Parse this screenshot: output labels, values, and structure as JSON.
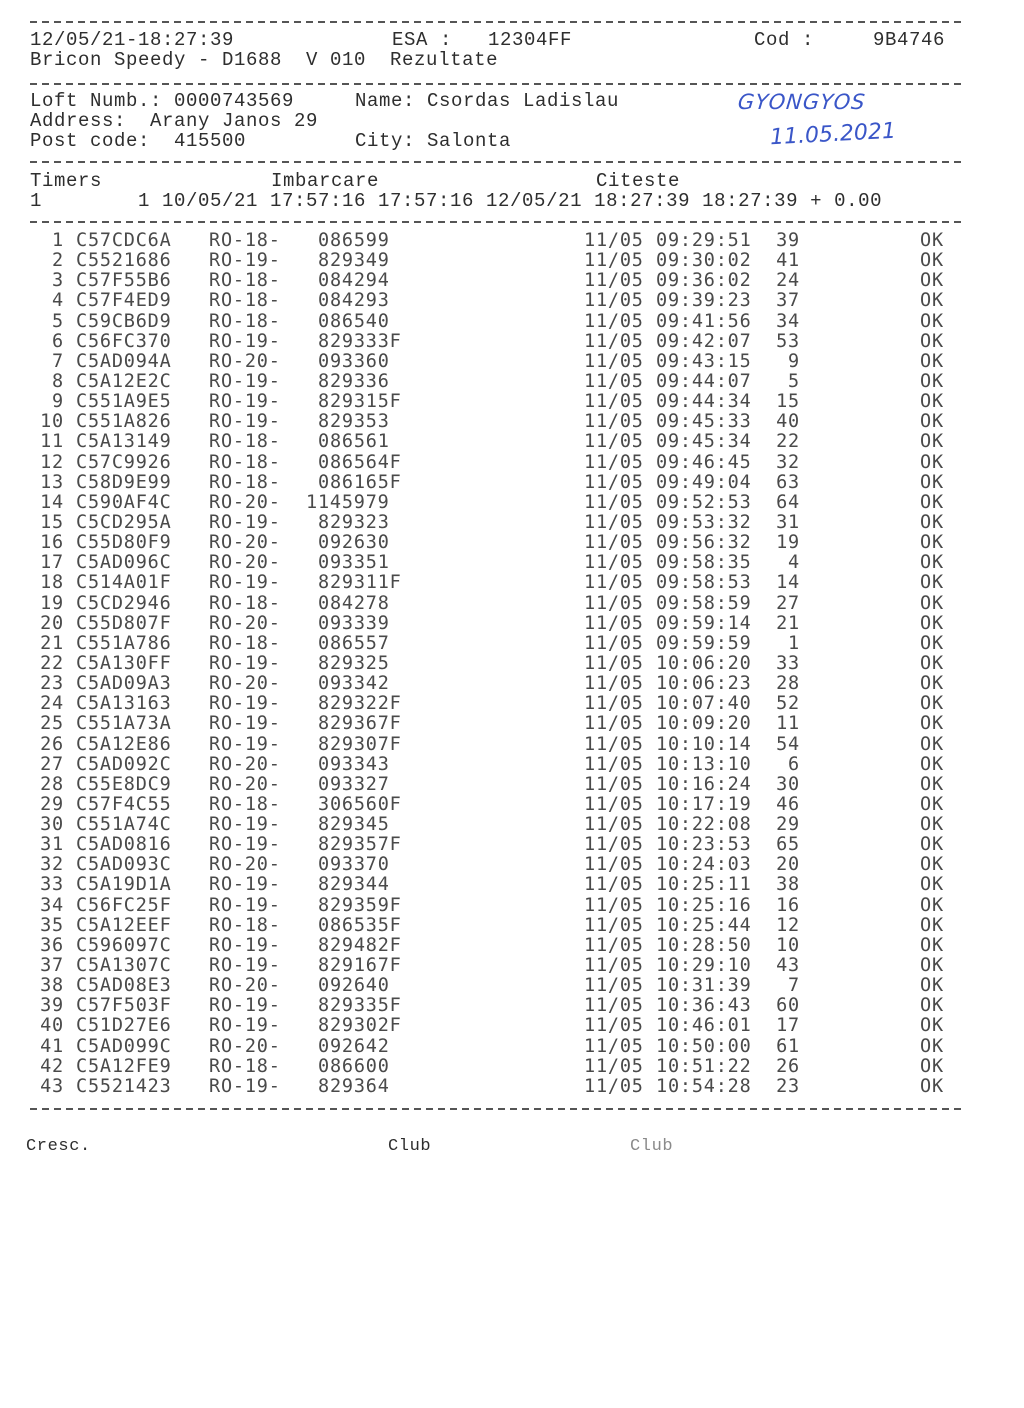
{
  "header": {
    "datetime": "12/05/21-18:27:39",
    "esa_label": "ESA :",
    "esa_value": "12304FF",
    "cod_label": "Cod :",
    "cod_value": "9B4746",
    "device_line": "Bricon Speedy - D1688  V 010  Rezultate"
  },
  "fancier": {
    "loft_number": "Loft Numb.: 0000743569",
    "name": "Name: Csordas Ladislau",
    "address": "Address:  Arany Janos 29",
    "post_code": "Post code:  415500",
    "city": "City: Salonta"
  },
  "handwritten": {
    "place": "GYONGYOS",
    "date": "11.05.2021"
  },
  "timers": {
    "col_timers": "Timers",
    "col_imbarcare": "Imbarcare",
    "col_citeste": "Citeste",
    "timer_id": "1",
    "timer_line": "1 10/05/21 17:57:16 17:57:16 12/05/21 18:27:39 18:27:39 + 0.00"
  },
  "results": [
    [
      "1",
      "C57CDC6A",
      "RO-18-",
      "086599",
      "11/05",
      "09:29:51",
      "39",
      "OK"
    ],
    [
      "2",
      "C5521686",
      "RO-19-",
      "829349",
      "11/05",
      "09:30:02",
      "41",
      "OK"
    ],
    [
      "3",
      "C57F55B6",
      "RO-18-",
      "084294",
      "11/05",
      "09:36:02",
      "24",
      "OK"
    ],
    [
      "4",
      "C57F4ED9",
      "RO-18-",
      "084293",
      "11/05",
      "09:39:23",
      "37",
      "OK"
    ],
    [
      "5",
      "C59CB6D9",
      "RO-18-",
      "086540",
      "11/05",
      "09:41:56",
      "34",
      "OK"
    ],
    [
      "6",
      "C56FC370",
      "RO-19-",
      "829333F",
      "11/05",
      "09:42:07",
      "53",
      "OK"
    ],
    [
      "7",
      "C5AD094A",
      "RO-20-",
      "093360",
      "11/05",
      "09:43:15",
      "9",
      "OK"
    ],
    [
      "8",
      "C5A12E2C",
      "RO-19-",
      "829336",
      "11/05",
      "09:44:07",
      "5",
      "OK"
    ],
    [
      "9",
      "C551A9E5",
      "RO-19-",
      "829315F",
      "11/05",
      "09:44:34",
      "15",
      "OK"
    ],
    [
      "10",
      "C551A826",
      "RO-19-",
      "829353",
      "11/05",
      "09:45:33",
      "40",
      "OK"
    ],
    [
      "11",
      "C5A13149",
      "RO-18-",
      "086561",
      "11/05",
      "09:45:34",
      "22",
      "OK"
    ],
    [
      "12",
      "C57C9926",
      "RO-18-",
      "086564F",
      "11/05",
      "09:46:45",
      "32",
      "OK"
    ],
    [
      "13",
      "C58D9E99",
      "RO-18-",
      "086165F",
      "11/05",
      "09:49:04",
      "63",
      "OK"
    ],
    [
      "14",
      "C590AF4C",
      "RO-20-",
      "1145979",
      "11/05",
      "09:52:53",
      "64",
      "OK"
    ],
    [
      "15",
      "C5CD295A",
      "RO-19-",
      "829323",
      "11/05",
      "09:53:32",
      "31",
      "OK"
    ],
    [
      "16",
      "C55D80F9",
      "RO-20-",
      "092630",
      "11/05",
      "09:56:32",
      "19",
      "OK"
    ],
    [
      "17",
      "C5AD096C",
      "RO-20-",
      "093351",
      "11/05",
      "09:58:35",
      "4",
      "OK"
    ],
    [
      "18",
      "C514A01F",
      "RO-19-",
      "829311F",
      "11/05",
      "09:58:53",
      "14",
      "OK"
    ],
    [
      "19",
      "C5CD2946",
      "RO-18-",
      "084278",
      "11/05",
      "09:58:59",
      "27",
      "OK"
    ],
    [
      "20",
      "C55D807F",
      "RO-20-",
      "093339",
      "11/05",
      "09:59:14",
      "21",
      "OK"
    ],
    [
      "21",
      "C551A786",
      "RO-18-",
      "086557",
      "11/05",
      "09:59:59",
      "1",
      "OK"
    ],
    [
      "22",
      "C5A130FF",
      "RO-19-",
      "829325",
      "11/05",
      "10:06:20",
      "33",
      "OK"
    ],
    [
      "23",
      "C5AD09A3",
      "RO-20-",
      "093342",
      "11/05",
      "10:06:23",
      "28",
      "OK"
    ],
    [
      "24",
      "C5A13163",
      "RO-19-",
      "829322F",
      "11/05",
      "10:07:40",
      "52",
      "OK"
    ],
    [
      "25",
      "C551A73A",
      "RO-19-",
      "829367F",
      "11/05",
      "10:09:20",
      "11",
      "OK"
    ],
    [
      "26",
      "C5A12E86",
      "RO-19-",
      "829307F",
      "11/05",
      "10:10:14",
      "54",
      "OK"
    ],
    [
      "27",
      "C5AD092C",
      "RO-20-",
      "093343",
      "11/05",
      "10:13:10",
      "6",
      "OK"
    ],
    [
      "28",
      "C55E8DC9",
      "RO-20-",
      "093327",
      "11/05",
      "10:16:24",
      "30",
      "OK"
    ],
    [
      "29",
      "C57F4C55",
      "RO-18-",
      "306560F",
      "11/05",
      "10:17:19",
      "46",
      "OK"
    ],
    [
      "30",
      "C551A74C",
      "RO-19-",
      "829345",
      "11/05",
      "10:22:08",
      "29",
      "OK"
    ],
    [
      "31",
      "C5AD0816",
      "RO-19-",
      "829357F",
      "11/05",
      "10:23:53",
      "65",
      "OK"
    ],
    [
      "32",
      "C5AD093C",
      "RO-20-",
      "093370",
      "11/05",
      "10:24:03",
      "20",
      "OK"
    ],
    [
      "33",
      "C5A19D1A",
      "RO-19-",
      "829344",
      "11/05",
      "10:25:11",
      "38",
      "OK"
    ],
    [
      "34",
      "C56FC25F",
      "RO-19-",
      "829359F",
      "11/05",
      "10:25:16",
      "16",
      "OK"
    ],
    [
      "35",
      "C5A12EEF",
      "RO-18-",
      "086535F",
      "11/05",
      "10:25:44",
      "12",
      "OK"
    ],
    [
      "36",
      "C596097C",
      "RO-19-",
      "829482F",
      "11/05",
      "10:28:50",
      "10",
      "OK"
    ],
    [
      "37",
      "C5A1307C",
      "RO-19-",
      "829167F",
      "11/05",
      "10:29:10",
      "43",
      "OK"
    ],
    [
      "38",
      "C5AD08E3",
      "RO-20-",
      "092640",
      "11/05",
      "10:31:39",
      "7",
      "OK"
    ],
    [
      "39",
      "C57F503F",
      "RO-19-",
      "829335F",
      "11/05",
      "10:36:43",
      "60",
      "OK"
    ],
    [
      "40",
      "C51D27E6",
      "RO-19-",
      "829302F",
      "11/05",
      "10:46:01",
      "17",
      "OK"
    ],
    [
      "41",
      "C5AD099C",
      "RO-20-",
      "092642",
      "11/05",
      "10:50:00",
      "61",
      "OK"
    ],
    [
      "42",
      "C5A12FE9",
      "RO-18-",
      "086600",
      "11/05",
      "10:51:22",
      "26",
      "OK"
    ],
    [
      "43",
      "C5521423",
      "RO-19-",
      "829364",
      "11/05",
      "10:54:28",
      "23",
      "OK"
    ]
  ],
  "footer": {
    "cresc": "Cresc.",
    "club1": "Club",
    "club2": "Club"
  }
}
